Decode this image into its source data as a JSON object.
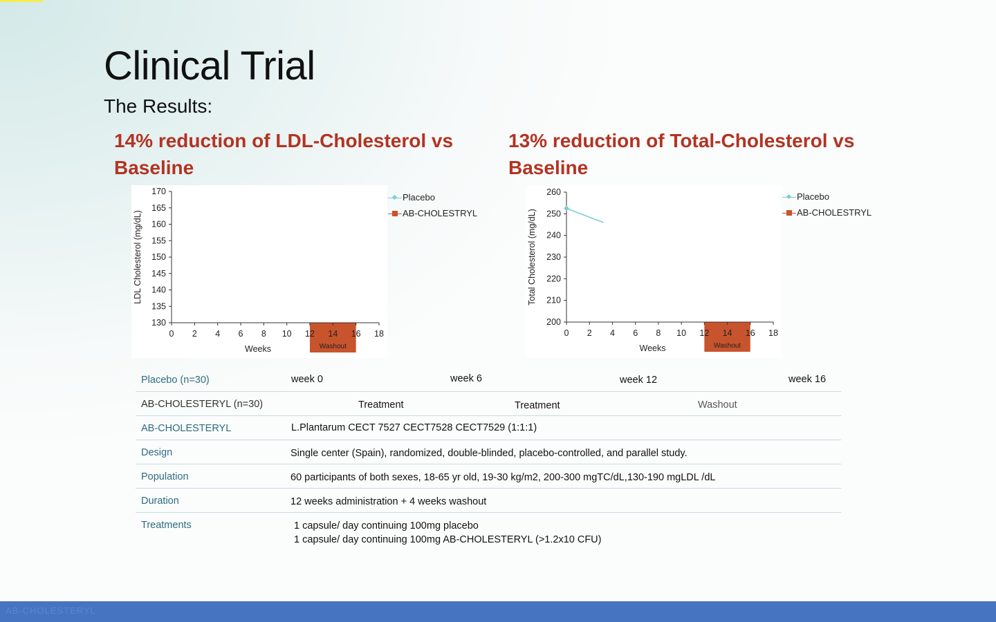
{
  "slide": {
    "title": "Clinical Trial",
    "subtitle": "The Results:",
    "heading_left": "14% reduction of LDL-Cholesterol vs Baseline",
    "heading_right": "13% reduction of Total-Cholesterol vs Baseline",
    "footer_text": "AB-CHOLESTERYL"
  },
  "colors": {
    "heading": "#b33323",
    "placebo": "#7ccdd0",
    "ab_cholestryl": "#c8542d",
    "washout": "#c8542d",
    "table_label": "#2d6c7f",
    "footer": "#4674c1"
  },
  "chart_data": [
    {
      "type": "line",
      "xlabel": "Weeks",
      "ylabel": "LDL Cholesterol (mg/dL)",
      "xlim": [
        0,
        18
      ],
      "ylim": [
        130,
        170
      ],
      "xticks": [
        0,
        2,
        4,
        6,
        8,
        10,
        12,
        14,
        16,
        18
      ],
      "yticks": [
        130,
        135,
        140,
        145,
        150,
        155,
        160,
        165,
        170
      ],
      "series": [
        {
          "name": "Placebo",
          "marker": "diamond",
          "color": "#7ccdd0",
          "x": [],
          "y": []
        },
        {
          "name": "AB-CHOLESTRYL",
          "marker": "square",
          "color": "#c8542d",
          "x": [],
          "y": []
        }
      ],
      "shaded_region": {
        "label": "Washout",
        "x_start": 12,
        "x_end": 16,
        "color": "#c8542d"
      },
      "legend": "top-right",
      "grid": false
    },
    {
      "type": "line",
      "xlabel": "Weeks",
      "ylabel": "Total Cholesterol (mg/dL)",
      "xlim": [
        0,
        18
      ],
      "ylim": [
        200,
        260
      ],
      "xticks": [
        0,
        2,
        4,
        6,
        8,
        10,
        12,
        14,
        16,
        18
      ],
      "yticks": [
        200,
        210,
        220,
        230,
        240,
        250,
        260
      ],
      "series": [
        {
          "name": "Placebo",
          "marker": "diamond",
          "color": "#7ccdd0",
          "x": [
            0,
            3.2
          ],
          "y": [
            252.5,
            246
          ]
        },
        {
          "name": "AB-CHOLESTRYL",
          "marker": "square",
          "color": "#c8542d",
          "x": [],
          "y": []
        }
      ],
      "shaded_region": {
        "label": "Washout",
        "x_start": 12,
        "x_end": 16,
        "color": "#c8542d"
      },
      "legend": "top-right",
      "grid": false
    }
  ],
  "table": {
    "rows": [
      {
        "label": "Placebo (n=30)",
        "cols": [
          "week 0",
          "week 6",
          "week 12",
          "week 16"
        ]
      },
      {
        "label": "AB-CHOLESTERYL (n=30)",
        "cols": [
          "Treatment",
          "Treatment",
          "Washout"
        ]
      },
      {
        "label": "AB-CHOLESTERYL",
        "value": "L.Plantarum CECT 7527 CECT7528 CECT7529 (1:1:1)"
      },
      {
        "label": "Design",
        "value": "Single center (Spain), randomized, double-blinded, placebo-controlled, and parallel study."
      },
      {
        "label": "Population",
        "value": "60 participants of both sexes, 18-65 yr old, 19-30 kg/m2, 200-300 mgTC/dL,130-190 mgLDL /dL"
      },
      {
        "label": "Duration",
        "value": "12 weeks administration + 4 weeks washout"
      },
      {
        "label": "Treatments",
        "lines": [
          "1 capsule/ day continuing 100mg placebo",
          "1 capsule/ day continuing 100mg AB-CHOLESTERYL (>1.2x10 CFU)"
        ]
      }
    ]
  }
}
